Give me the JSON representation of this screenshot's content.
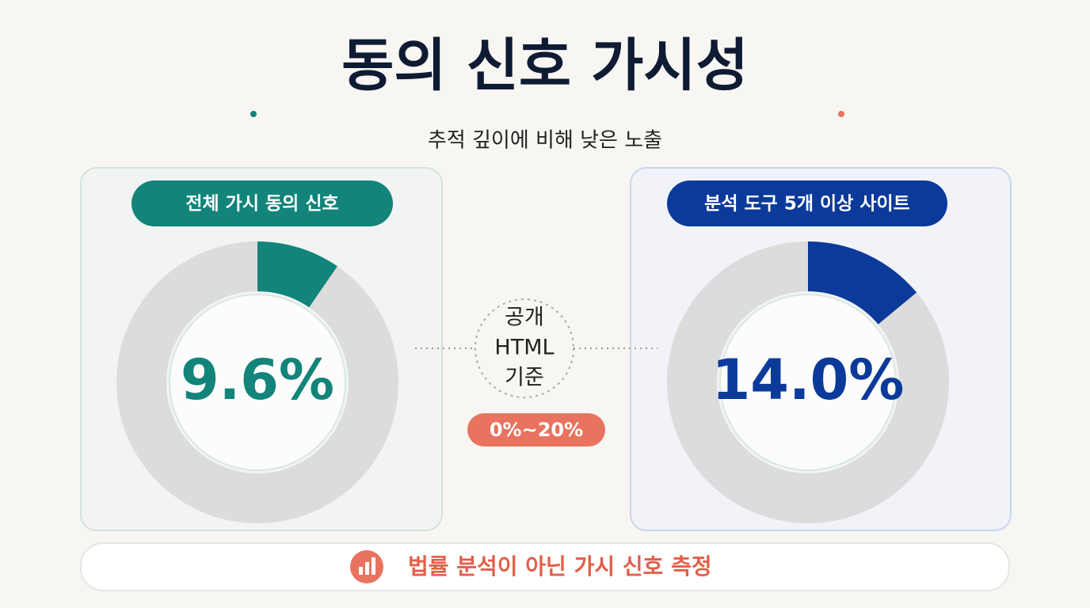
{
  "title": "동의 신호 가시성",
  "subtitle": "추적 깊이에 비해 낮은 노출",
  "center_note": {
    "lines": [
      "공개",
      "HTML",
      "기준"
    ],
    "range": "0%~20%"
  },
  "footer": "법률 분석이 아닌 가시 신호 측정",
  "chart_data": [
    {
      "type": "donut",
      "title": "전체 가시 동의 신호",
      "values": [
        9.6,
        90.4
      ],
      "value_labels": [
        "9.6%",
        null
      ],
      "colors": [
        "#12847a",
        "#dcdcdc"
      ]
    },
    {
      "type": "donut",
      "title": "분석 도구 5개 이상 사이트",
      "values": [
        14.0,
        86.0
      ],
      "value_labels": [
        "14.0%",
        null
      ],
      "colors": [
        "#0b3a9a",
        "#dcdcdc"
      ]
    }
  ]
}
